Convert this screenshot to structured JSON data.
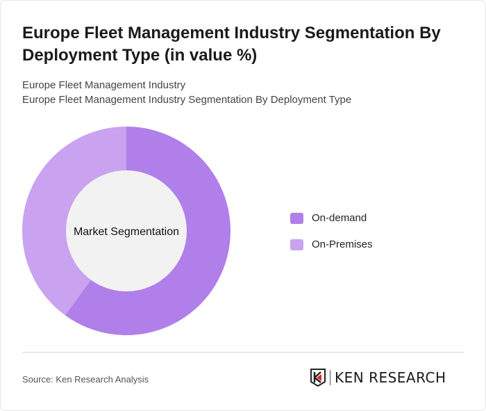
{
  "header": {
    "title": "Europe Fleet Management Industry Segmentation By Deployment Type (in value %)",
    "subtitle1": "Europe Fleet Management Industry",
    "subtitle2": "Europe Fleet Management Industry Segmentation By Deployment Type"
  },
  "chart_data": {
    "type": "pie",
    "donut": true,
    "center_label": "Market Segmentation",
    "categories": [
      "On-demand",
      "On-Premises"
    ],
    "values": [
      60,
      40
    ],
    "colors": [
      "#b07fea",
      "#c9a2f0"
    ],
    "center_color": "#f2f2f2",
    "legend_position": "right"
  },
  "footer": {
    "source": "Source: Ken Research Analysis",
    "logo_text": "KEN RESEARCH"
  }
}
